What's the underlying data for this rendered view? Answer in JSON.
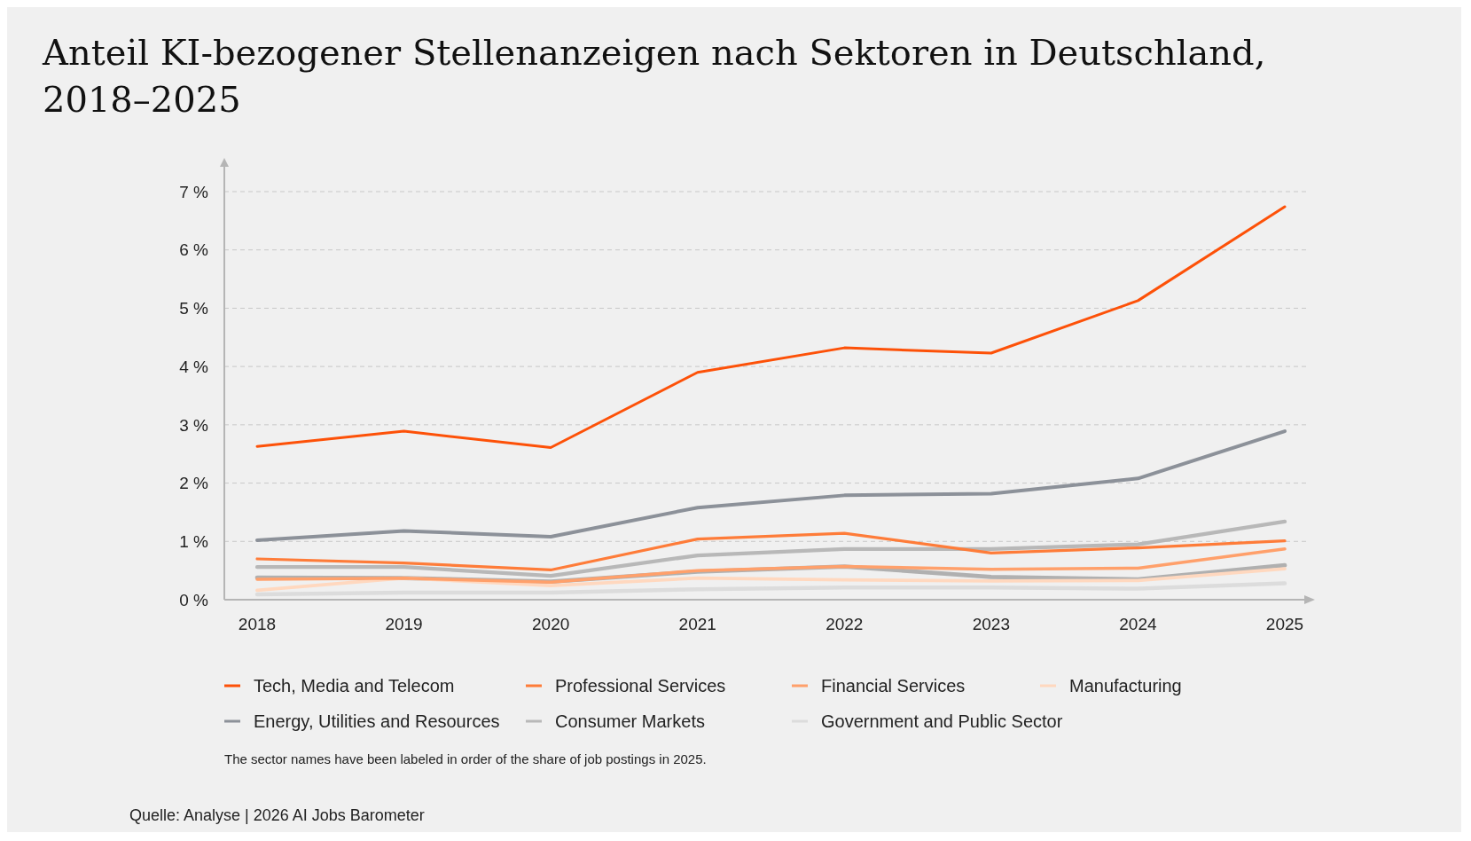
{
  "chart_data": {
    "type": "line",
    "title": "Anteil KI-bezogener Stellenanzeigen nach Sektoren in Deutschland, 2018–2025",
    "categories": [
      "2018",
      "2019",
      "2020",
      "2021",
      "2022",
      "2023",
      "2024",
      "2025"
    ],
    "series": [
      {
        "name": "Tech, Media and Telecom",
        "color": "#fd5108",
        "values": [
          2.63,
          2.89,
          2.61,
          3.9,
          4.32,
          4.23,
          5.13,
          6.74
        ]
      },
      {
        "name": "Professional Services",
        "color": "#fe7c39",
        "values": [
          0.7,
          0.63,
          0.51,
          1.04,
          1.14,
          0.8,
          0.89,
          1.01
        ]
      },
      {
        "name": "Financial Services",
        "color": "#ffa06b",
        "values": [
          0.35,
          0.37,
          0.3,
          0.5,
          0.57,
          0.52,
          0.54,
          0.87
        ]
      },
      {
        "name": "Manufacturing",
        "color": "#ffd8bf",
        "values": [
          0.16,
          0.37,
          0.24,
          0.37,
          0.34,
          0.32,
          0.33,
          0.53
        ]
      },
      {
        "name": "Energy, Utilities and Resources",
        "color": "#8c9199",
        "values": [
          1.02,
          1.18,
          1.08,
          1.58,
          1.79,
          1.82,
          2.08,
          2.89
        ]
      },
      {
        "name": "Consumer Markets",
        "color": "#b8b8b8",
        "values": [
          0.56,
          0.56,
          0.41,
          0.76,
          0.87,
          0.87,
          0.95,
          1.34
        ]
      },
      {
        "name": "Government and Public Sector",
        "color": "#dcdcdc",
        "values": [
          0.09,
          0.12,
          0.12,
          0.18,
          0.21,
          0.21,
          0.19,
          0.28
        ]
      },
      {
        "color": "#b0b0b0",
        "values": [
          0.38,
          0.37,
          0.31,
          0.48,
          0.57,
          0.39,
          0.35,
          0.59
        ]
      }
    ],
    "ylim": [
      0,
      7
    ],
    "yticks": [
      {
        "value": 0,
        "label": "0 %"
      },
      {
        "value": 1,
        "label": "1 %"
      },
      {
        "value": 2,
        "label": "2 %"
      },
      {
        "value": 3,
        "label": "3 %"
      },
      {
        "value": 4,
        "label": "4 %"
      },
      {
        "value": 5,
        "label": "5 %"
      },
      {
        "value": 6,
        "label": "6 %"
      },
      {
        "value": 7,
        "label": "7 %"
      }
    ],
    "grid": "y",
    "legend": "bottom",
    "marker": "none",
    "line_style": "solid",
    "annotations": [
      "The sector names have been labeled in order of the share of job postings in 2025.",
      "Quelle: Analyse | 2026 AI Jobs Barometer"
    ]
  }
}
